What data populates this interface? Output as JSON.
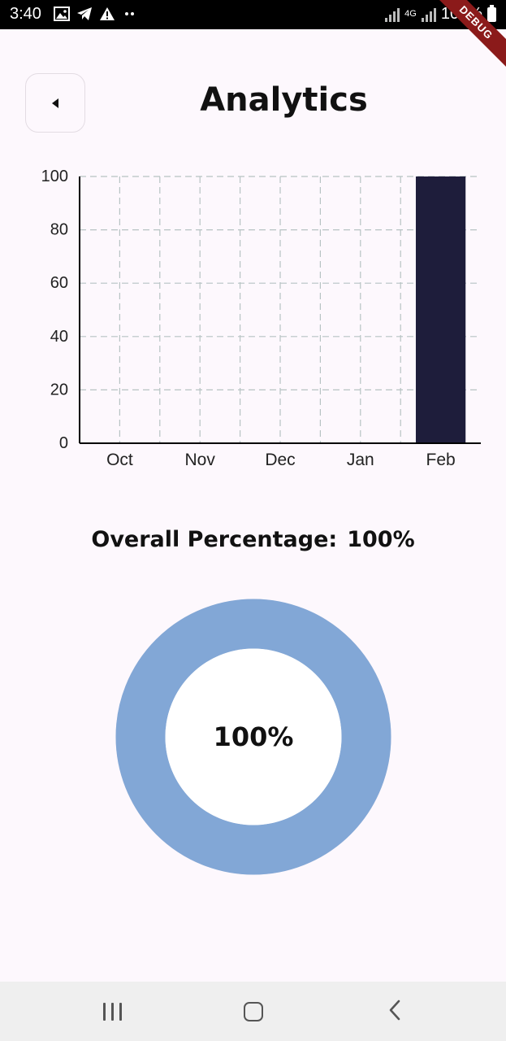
{
  "status_bar": {
    "time": "3:40",
    "network": "4G",
    "battery": "100%",
    "left_icons": [
      "image-icon",
      "telegram-icon",
      "warning-icon",
      "more-dots-icon"
    ],
    "debug_banner": "DEBUG"
  },
  "header": {
    "title": "Analytics",
    "back_icon": "back-arrow-icon"
  },
  "chart_data": {
    "type": "bar",
    "categories": [
      "Oct",
      "Nov",
      "Dec",
      "Jan",
      "Feb"
    ],
    "values": [
      0,
      0,
      0,
      0,
      100
    ],
    "y_ticks": [
      "0",
      "20",
      "40",
      "60",
      "80",
      "100"
    ],
    "ylim": [
      0,
      100
    ],
    "grid": true,
    "bar_color": "#1e1d3b",
    "grid_color": "#b7c3c3"
  },
  "overall": {
    "label": "Overall Percentage:",
    "value": "100%"
  },
  "donut": {
    "percent": 100,
    "center_label": "100%",
    "color": "#82a7d6"
  },
  "nav_bar": {
    "recents_icon": "recents-icon",
    "home_icon": "home-icon",
    "back_icon": "back-icon"
  }
}
